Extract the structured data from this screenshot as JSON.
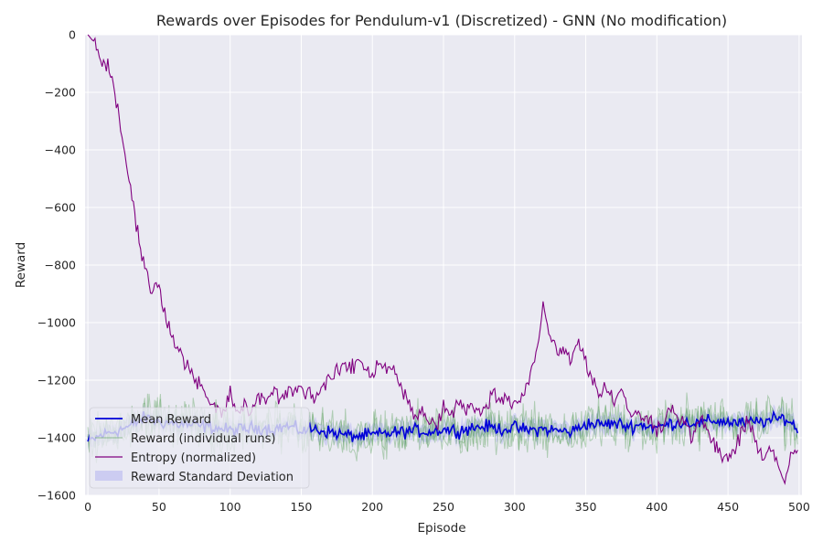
{
  "chart_data": {
    "type": "line",
    "title": "Rewards over Episodes for Pendulum-v1 (Discretized) - GNN (No modification)",
    "xlabel": "Episode",
    "ylabel": "Reward",
    "xlim": [
      -2,
      502
    ],
    "ylim": [
      -1600,
      0
    ],
    "x_ticks": [
      0,
      50,
      100,
      150,
      200,
      250,
      300,
      350,
      400,
      450,
      500
    ],
    "y_ticks": [
      0,
      -200,
      -400,
      -600,
      -800,
      -1000,
      -1200,
      -1400,
      -1600
    ],
    "grid": true,
    "legend_position": "lower left",
    "episodes": {
      "start": 0,
      "end": 499,
      "step": 1
    },
    "series": [
      {
        "name": "Mean Reward",
        "role": "mean",
        "color": "#0000d8",
        "keypoints_x": [
          0,
          10,
          20,
          30,
          40,
          50,
          60,
          70,
          80,
          90,
          100,
          110,
          120,
          130,
          140,
          150,
          160,
          170,
          180,
          190,
          200,
          210,
          220,
          230,
          240,
          250,
          260,
          270,
          280,
          290,
          300,
          310,
          320,
          330,
          340,
          350,
          360,
          370,
          380,
          390,
          400,
          410,
          420,
          430,
          440,
          450,
          460,
          470,
          480,
          490,
          499
        ],
        "keypoints_y": [
          -1415,
          -1390,
          -1375,
          -1360,
          -1330,
          -1345,
          -1350,
          -1355,
          -1360,
          -1365,
          -1375,
          -1370,
          -1365,
          -1370,
          -1360,
          -1375,
          -1370,
          -1380,
          -1390,
          -1395,
          -1390,
          -1385,
          -1380,
          -1375,
          -1380,
          -1370,
          -1375,
          -1365,
          -1360,
          -1370,
          -1365,
          -1375,
          -1370,
          -1375,
          -1380,
          -1350,
          -1355,
          -1350,
          -1360,
          -1355,
          -1365,
          -1350,
          -1345,
          -1350,
          -1340,
          -1345,
          -1350,
          -1345,
          -1340,
          -1330,
          -1370
        ]
      },
      {
        "name": "Reward (individual runs)",
        "role": "runs",
        "color": "#4e9a4e",
        "run_count": 3,
        "spread": 75
      },
      {
        "name": "Entropy (normalized)",
        "role": "entropy",
        "color": "#800080",
        "keypoints_x": [
          0,
          5,
          10,
          15,
          20,
          25,
          30,
          35,
          40,
          45,
          50,
          55,
          60,
          65,
          70,
          75,
          80,
          85,
          90,
          95,
          100,
          105,
          110,
          115,
          120,
          125,
          130,
          135,
          140,
          145,
          150,
          155,
          160,
          165,
          170,
          175,
          180,
          185,
          190,
          195,
          200,
          205,
          210,
          215,
          220,
          225,
          230,
          235,
          240,
          245,
          250,
          255,
          260,
          265,
          270,
          275,
          280,
          285,
          290,
          295,
          300,
          305,
          310,
          315,
          320,
          325,
          330,
          335,
          340,
          345,
          350,
          355,
          360,
          365,
          370,
          375,
          380,
          385,
          390,
          395,
          400,
          405,
          410,
          415,
          420,
          425,
          430,
          435,
          440,
          445,
          450,
          455,
          460,
          465,
          470,
          475,
          480,
          485,
          490,
          495,
          499
        ],
        "keypoints_y": [
          0,
          -30,
          -90,
          -120,
          -240,
          -380,
          -540,
          -690,
          -790,
          -900,
          -860,
          -1000,
          -1050,
          -1100,
          -1150,
          -1180,
          -1230,
          -1280,
          -1300,
          -1320,
          -1250,
          -1310,
          -1290,
          -1310,
          -1270,
          -1260,
          -1240,
          -1260,
          -1250,
          -1220,
          -1230,
          -1240,
          -1260,
          -1220,
          -1200,
          -1180,
          -1140,
          -1170,
          -1120,
          -1160,
          -1180,
          -1130,
          -1160,
          -1150,
          -1230,
          -1280,
          -1330,
          -1300,
          -1360,
          -1350,
          -1290,
          -1340,
          -1270,
          -1300,
          -1290,
          -1320,
          -1300,
          -1240,
          -1280,
          -1260,
          -1280,
          -1250,
          -1200,
          -1110,
          -950,
          -1030,
          -1110,
          -1080,
          -1130,
          -1050,
          -1140,
          -1200,
          -1250,
          -1220,
          -1270,
          -1230,
          -1320,
          -1300,
          -1350,
          -1320,
          -1370,
          -1340,
          -1300,
          -1320,
          -1360,
          -1400,
          -1330,
          -1380,
          -1420,
          -1460,
          -1470,
          -1440,
          -1380,
          -1350,
          -1420,
          -1460,
          -1440,
          -1480,
          -1560,
          -1460,
          -1450
        ],
        "noise": 30
      },
      {
        "name": "Reward Standard Deviation",
        "role": "std-band",
        "color": "#6666ee",
        "half_width": 28
      }
    ]
  }
}
